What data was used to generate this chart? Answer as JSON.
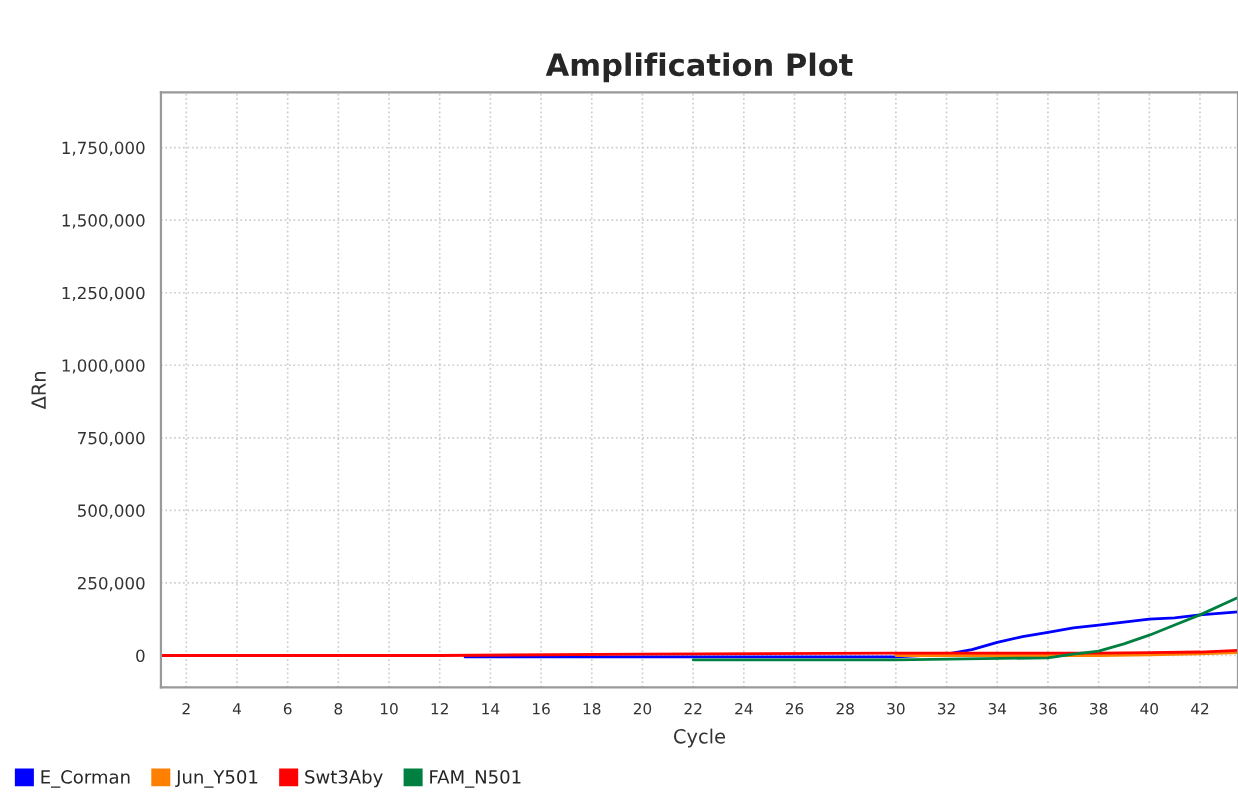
{
  "chart_data": {
    "type": "line",
    "title": "Amplification Plot",
    "xlabel": "Cycle",
    "ylabel": "ΔRn",
    "xlim": [
      1,
      43.5
    ],
    "ylim": [
      -110000,
      1940000
    ],
    "xticks": [
      2,
      4,
      6,
      8,
      10,
      12,
      14,
      16,
      18,
      20,
      22,
      24,
      26,
      28,
      30,
      32,
      34,
      36,
      38,
      40,
      42
    ],
    "yticks": [
      {
        "value": 0,
        "label": "0"
      },
      {
        "value": 250000,
        "label": "250,000"
      },
      {
        "value": 500000,
        "label": "500,000"
      },
      {
        "value": 750000,
        "label": "750,000"
      },
      {
        "value": 1000000,
        "label": "1,000,000"
      },
      {
        "value": 1250000,
        "label": "1,250,000"
      },
      {
        "value": 1500000,
        "label": "1,500,000"
      },
      {
        "value": 1750000,
        "label": "1,750,000"
      }
    ],
    "grid": true,
    "legend": "bottom left",
    "marker": "none",
    "line_style": "solid",
    "series": [
      {
        "name": "E_Corman",
        "color": "#0000ff",
        "x": [
          13,
          20,
          26,
          30,
          31,
          32,
          33,
          34,
          35,
          36,
          37,
          38,
          39,
          40,
          41,
          42,
          43.5
        ],
        "values": [
          -5000,
          -5000,
          -5000,
          -5000,
          0,
          5000,
          20000,
          45000,
          65000,
          80000,
          95000,
          105000,
          115000,
          125000,
          130000,
          140000,
          150000
        ]
      },
      {
        "name": "Jun_Y501",
        "color": "#ff8000",
        "x": [
          30,
          38,
          40,
          42,
          43.5
        ],
        "values": [
          0,
          0,
          2000,
          6000,
          10000
        ]
      },
      {
        "name": "Swt3Aby",
        "color": "#ff0000",
        "x": [
          1,
          12,
          20,
          30,
          38,
          40,
          42,
          43.5
        ],
        "values": [
          0,
          0,
          5000,
          8000,
          8000,
          10000,
          12000,
          18000
        ]
      },
      {
        "name": "FAM_N501",
        "color": "#008040",
        "x": [
          22,
          30,
          36,
          37,
          38,
          39,
          40,
          41,
          42,
          43.5
        ],
        "values": [
          -15000,
          -15000,
          -8000,
          5000,
          15000,
          40000,
          70000,
          105000,
          140000,
          200000
        ]
      }
    ]
  }
}
